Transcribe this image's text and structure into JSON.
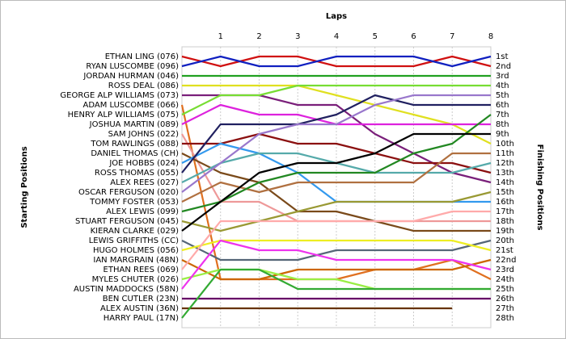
{
  "chart_data": {
    "type": "line",
    "title": "Laps",
    "y_label": "Starting Positions",
    "y2_label": "Finishing Positions",
    "x": [
      0,
      1,
      2,
      3,
      4,
      5,
      6,
      7,
      8
    ],
    "xlim": [
      0,
      8
    ],
    "xticks": [
      1,
      2,
      3,
      4,
      5,
      6,
      7,
      8
    ],
    "ylim": [
      1,
      28
    ],
    "grid": true,
    "finishing_labels": [
      "1st",
      "2nd",
      "3rd",
      "4th",
      "5th",
      "6th",
      "7th",
      "8th",
      "9th",
      "10th",
      "11th",
      "12th",
      "13th",
      "14th",
      "15th",
      "16th",
      "17th",
      "18th",
      "19th",
      "20th",
      "21st",
      "22nd",
      "23rd",
      "24th",
      "25th",
      "26th",
      "27th",
      "28th"
    ],
    "series": [
      {
        "name": "ETHAN LING (076)",
        "color": "#d01010",
        "values": [
          1,
          2,
          1,
          1,
          2,
          2,
          2,
          1,
          2
        ]
      },
      {
        "name": "RYAN LUSCOMBE (096)",
        "color": "#1020c0",
        "values": [
          2,
          1,
          2,
          2,
          1,
          1,
          1,
          2,
          1
        ]
      },
      {
        "name": "JORDAN HURMAN (046)",
        "color": "#20a020",
        "values": [
          3,
          3,
          3,
          3,
          3,
          3,
          3,
          3,
          3
        ]
      },
      {
        "name": "ROSS DEAL (086)",
        "color": "#e0e020",
        "values": [
          4,
          4,
          4,
          4,
          5,
          6,
          7,
          8,
          10
        ]
      },
      {
        "name": "GEORGE ALP WILLIAMS (073)",
        "color": "#7a1f7a",
        "values": [
          5,
          5,
          5,
          6,
          6,
          9,
          11,
          13,
          14
        ]
      },
      {
        "name": "ADAM LUSCOMBE (066)",
        "color": "#e07020",
        "values": [
          6,
          24,
          24,
          24,
          24,
          23,
          23,
          22,
          24
        ]
      },
      {
        "name": "HENRY ALP WILLIAMS (075)",
        "color": "#77dd33",
        "values": [
          7,
          5,
          5,
          4,
          4,
          4,
          4,
          4,
          4
        ]
      },
      {
        "name": "JOSHUA MARTIN (089)",
        "color": "#dd22dd",
        "values": [
          8,
          6,
          7,
          7,
          8,
          8,
          8,
          8,
          8
        ]
      },
      {
        "name": "SAM JOHNS (022)",
        "color": "#ee9999",
        "values": [
          9,
          16,
          16,
          18,
          18,
          18,
          18,
          18,
          18
        ]
      },
      {
        "name": "TOM RAWLINGS (088)",
        "color": "#8b1010",
        "values": [
          10,
          10,
          9,
          10,
          10,
          11,
          12,
          12,
          13
        ]
      },
      {
        "name": "DANIEL THOMAS (CH)",
        "color": "#7a4a1a",
        "values": [
          11,
          13,
          14,
          17,
          17,
          18,
          19,
          19,
          19
        ]
      },
      {
        "name": "JOE HOBBS (024)",
        "color": "#3399ee",
        "values": [
          12,
          10,
          11,
          13,
          16,
          16,
          16,
          16,
          16
        ]
      },
      {
        "name": "ROSS THOMAS (055)",
        "color": "#202060",
        "values": [
          13,
          8,
          8,
          8,
          7,
          5,
          6,
          6,
          6
        ]
      },
      {
        "name": "ALEX REES (027)",
        "color": "#55aaaa",
        "values": [
          14,
          12,
          11,
          11,
          12,
          13,
          13,
          13,
          12
        ]
      },
      {
        "name": "OSCAR FERGUSON (020)",
        "color": "#9977cc",
        "values": [
          15,
          12,
          9,
          8,
          8,
          6,
          5,
          5,
          5
        ]
      },
      {
        "name": "TOMMY FOSTER (053)",
        "color": "#b07040",
        "values": [
          16,
          14,
          15,
          14,
          14,
          14,
          14,
          11,
          11
        ]
      },
      {
        "name": "ALEX LEWIS (099)",
        "color": "#228822",
        "values": [
          17,
          16,
          14,
          13,
          13,
          13,
          11,
          10,
          7
        ]
      },
      {
        "name": "STUART FERGUSON (045)",
        "color": "#999933",
        "values": [
          18,
          19,
          18,
          17,
          16,
          16,
          16,
          16,
          15
        ]
      },
      {
        "name": "KIERAN CLARKE (029)",
        "color": "#000000",
        "values": [
          19,
          16,
          13,
          12,
          12,
          11,
          9,
          9,
          9
        ]
      },
      {
        "name": "LEWIS GRIFFITHS (CC)",
        "color": "#556677",
        "values": [
          20,
          22,
          22,
          22,
          21,
          21,
          21,
          21,
          20
        ]
      },
      {
        "name": "HUGO HOLMES (056)",
        "color": "#eeee22",
        "values": [
          21,
          20,
          20,
          20,
          20,
          20,
          20,
          20,
          21
        ]
      },
      {
        "name": "IAN MARGRAIN (48N)",
        "color": "#cc6600",
        "values": [
          22,
          24,
          24,
          23,
          23,
          23,
          23,
          23,
          22
        ]
      },
      {
        "name": "ETHAN REES (069)",
        "color": "#ffaaaa",
        "values": [
          23,
          18,
          18,
          18,
          18,
          18,
          18,
          17,
          17
        ]
      },
      {
        "name": "MYLES CHUTER (026)",
        "color": "#99ee44",
        "values": [
          24,
          23,
          23,
          24,
          24,
          25,
          25,
          25,
          25
        ]
      },
      {
        "name": "AUSTIN MADDOCKS (58N)",
        "color": "#ee33ee",
        "values": [
          25,
          20,
          21,
          21,
          22,
          22,
          22,
          22,
          23
        ]
      },
      {
        "name": "BEN CUTLER (23N)",
        "color": "#660066",
        "values": [
          26,
          26,
          26,
          26,
          26,
          26,
          26,
          26,
          26
        ]
      },
      {
        "name": "ALEX AUSTIN (36N)",
        "color": "#663300",
        "values": [
          27,
          27,
          27,
          27,
          27,
          27,
          27,
          27,
          null
        ]
      },
      {
        "name": "HARRY PAUL (17N)",
        "color": "#33aa33",
        "values": [
          28,
          23,
          23,
          25,
          25,
          25,
          25,
          25,
          25
        ]
      }
    ]
  }
}
